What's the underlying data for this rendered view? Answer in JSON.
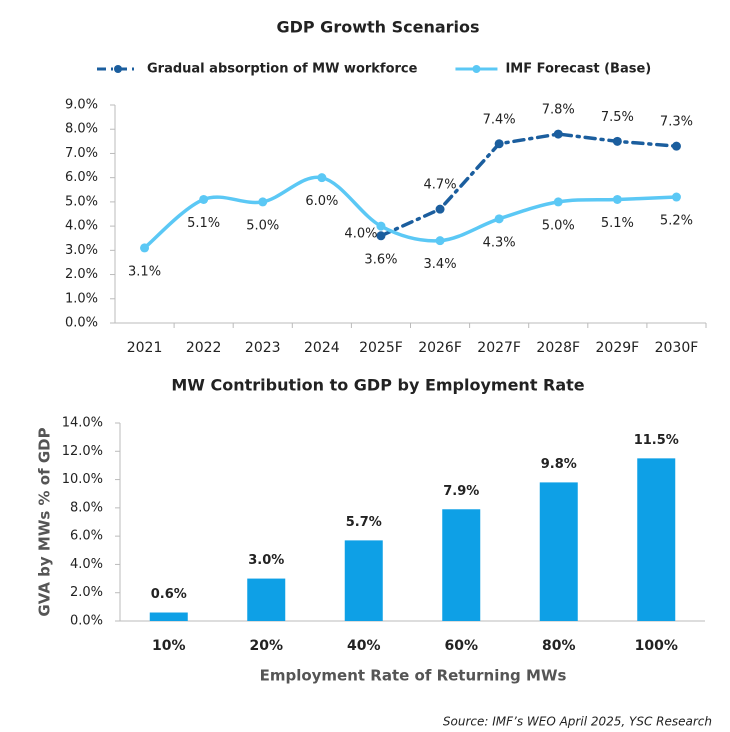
{
  "chart_data": [
    {
      "type": "line",
      "title": "GDP Growth Scenarios",
      "categories": [
        "2021",
        "2022",
        "2023",
        "2024",
        "2025F",
        "2026F",
        "2027F",
        "2028F",
        "2029F",
        "2030F"
      ],
      "series": [
        {
          "name": "Gradual absorption of MW workforce",
          "color": "#1b5e9e",
          "dashed": true,
          "values": [
            null,
            null,
            null,
            null,
            3.6,
            4.7,
            7.4,
            7.8,
            7.5,
            7.3
          ],
          "value_labels": [
            null,
            null,
            null,
            null,
            "3.6%",
            "4.7%",
            "7.4%",
            "7.8%",
            "7.5%",
            "7.3%"
          ]
        },
        {
          "name": "IMF Forecast (Base)",
          "color": "#5bc8f5",
          "label_color": "#1a9fd9",
          "smooth": true,
          "values": [
            3.1,
            5.1,
            5.0,
            6.0,
            4.0,
            3.4,
            4.3,
            5.0,
            5.1,
            5.2
          ],
          "value_labels": [
            "3.1%",
            "5.1%",
            "5.0%",
            "6.0%",
            "4.0%",
            "3.4%",
            "4.3%",
            "5.0%",
            "5.1%",
            "5.2%"
          ]
        }
      ],
      "ylim": [
        0,
        9
      ],
      "yticks": [
        {
          "value": 0,
          "label": "0.0%"
        },
        {
          "value": 1,
          "label": "1.0%"
        },
        {
          "value": 2,
          "label": "2.0%"
        },
        {
          "value": 3,
          "label": "3.0%"
        },
        {
          "value": 4,
          "label": "4.0%"
        },
        {
          "value": 5,
          "label": "5.0%"
        },
        {
          "value": 6,
          "label": "6.0%"
        },
        {
          "value": 7,
          "label": "7.0%"
        },
        {
          "value": 8,
          "label": "8.0%"
        },
        {
          "value": 9,
          "label": "9.0%"
        }
      ],
      "legend": "top",
      "grid": false
    },
    {
      "type": "bar",
      "title": "MW Contribution to GDP by Employment Rate",
      "x_label": "Employment Rate of Returning MWs",
      "y_label": "GVA by MWs % of GDP",
      "categories": [
        "10%",
        "20%",
        "40%",
        "60%",
        "80%",
        "100%"
      ],
      "values": [
        0.6,
        3.0,
        5.7,
        7.9,
        9.8,
        11.5
      ],
      "value_labels": [
        "0.6%",
        "3.0%",
        "5.7%",
        "7.9%",
        "9.8%",
        "11.5%"
      ],
      "color": "#0ea0e6",
      "ylim": [
        0,
        14
      ],
      "yticks": [
        {
          "value": 0,
          "label": "0.0%"
        },
        {
          "value": 2,
          "label": "2.0%"
        },
        {
          "value": 4,
          "label": "4.0%"
        },
        {
          "value": 6,
          "label": "6.0%"
        },
        {
          "value": 8,
          "label": "8.0%"
        },
        {
          "value": 10,
          "label": "10.0%"
        },
        {
          "value": 12,
          "label": "12.0%"
        },
        {
          "value": 14,
          "label": "14.0%"
        }
      ],
      "grid": false
    }
  ],
  "source": "Source: IMF’s WEO April 2025, YSC Research"
}
